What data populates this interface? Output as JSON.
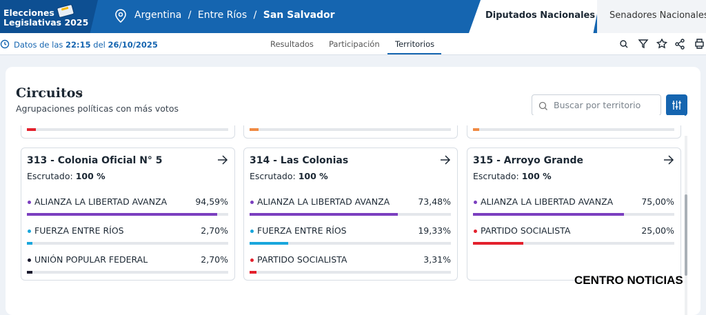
{
  "header": {
    "logo_line1": "Elecciones",
    "logo_line2": "Legislativas 2025",
    "breadcrumb": [
      "Argentina",
      "Entre Ríos",
      "San Salvador"
    ],
    "separator": "/",
    "tabs": [
      "Diputados Nacionales",
      "Senadores Nacionales"
    ]
  },
  "toolbar": {
    "prefix": "Datos de las",
    "time": "22:15",
    "connector": "del",
    "date": "26/10/2025",
    "nav": [
      "Resultados",
      "Participación",
      "Territorios"
    ]
  },
  "panel": {
    "title": "Circuitos",
    "subtitle": "Agrupaciones políticas con más votos",
    "search_placeholder": "Buscar por territorio",
    "partial_cards": [
      {
        "color": "#e3212d",
        "value": 4.5
      },
      {
        "color": "#f08a43",
        "value": 4.5
      },
      {
        "color": "#f08a43",
        "value": 3
      }
    ],
    "cards": [
      {
        "title": "313 - Colonia Oficial N° 5",
        "escrutado_label": "Escrutado:",
        "escrutado_value": "100 %",
        "rows": [
          {
            "name": "ALIANZA LA LIBERTAD AVANZA",
            "color": "#7b3fbf",
            "value": 94.59,
            "label": "94,59%"
          },
          {
            "name": "FUERZA ENTRE RÍOS",
            "color": "#19a6dc",
            "value": 2.7,
            "label": "2,70%"
          },
          {
            "name": "UNIÓN POPULAR FEDERAL",
            "color": "#1a1a2e",
            "value": 2.7,
            "label": "2,70%"
          }
        ]
      },
      {
        "title": "314 - Las Colonias",
        "escrutado_label": "Escrutado:",
        "escrutado_value": "100 %",
        "rows": [
          {
            "name": "ALIANZA LA LIBERTAD AVANZA",
            "color": "#7b3fbf",
            "value": 73.48,
            "label": "73,48%"
          },
          {
            "name": "FUERZA ENTRE RÍOS",
            "color": "#19a6dc",
            "value": 19.33,
            "label": "19,33%"
          },
          {
            "name": "PARTIDO SOCIALISTA",
            "color": "#e3212d",
            "value": 3.31,
            "label": "3,31%"
          }
        ]
      },
      {
        "title": "315 - Arroyo Grande",
        "escrutado_label": "Escrutado:",
        "escrutado_value": "100 %",
        "rows": [
          {
            "name": "ALIANZA LA LIBERTAD AVANZA",
            "color": "#7b3fbf",
            "value": 75.0,
            "label": "75,00%"
          },
          {
            "name": "PARTIDO SOCIALISTA",
            "color": "#e3212d",
            "value": 25.0,
            "label": "25,00%"
          }
        ]
      }
    ]
  },
  "watermark": "CENTRO NOTICIAS"
}
